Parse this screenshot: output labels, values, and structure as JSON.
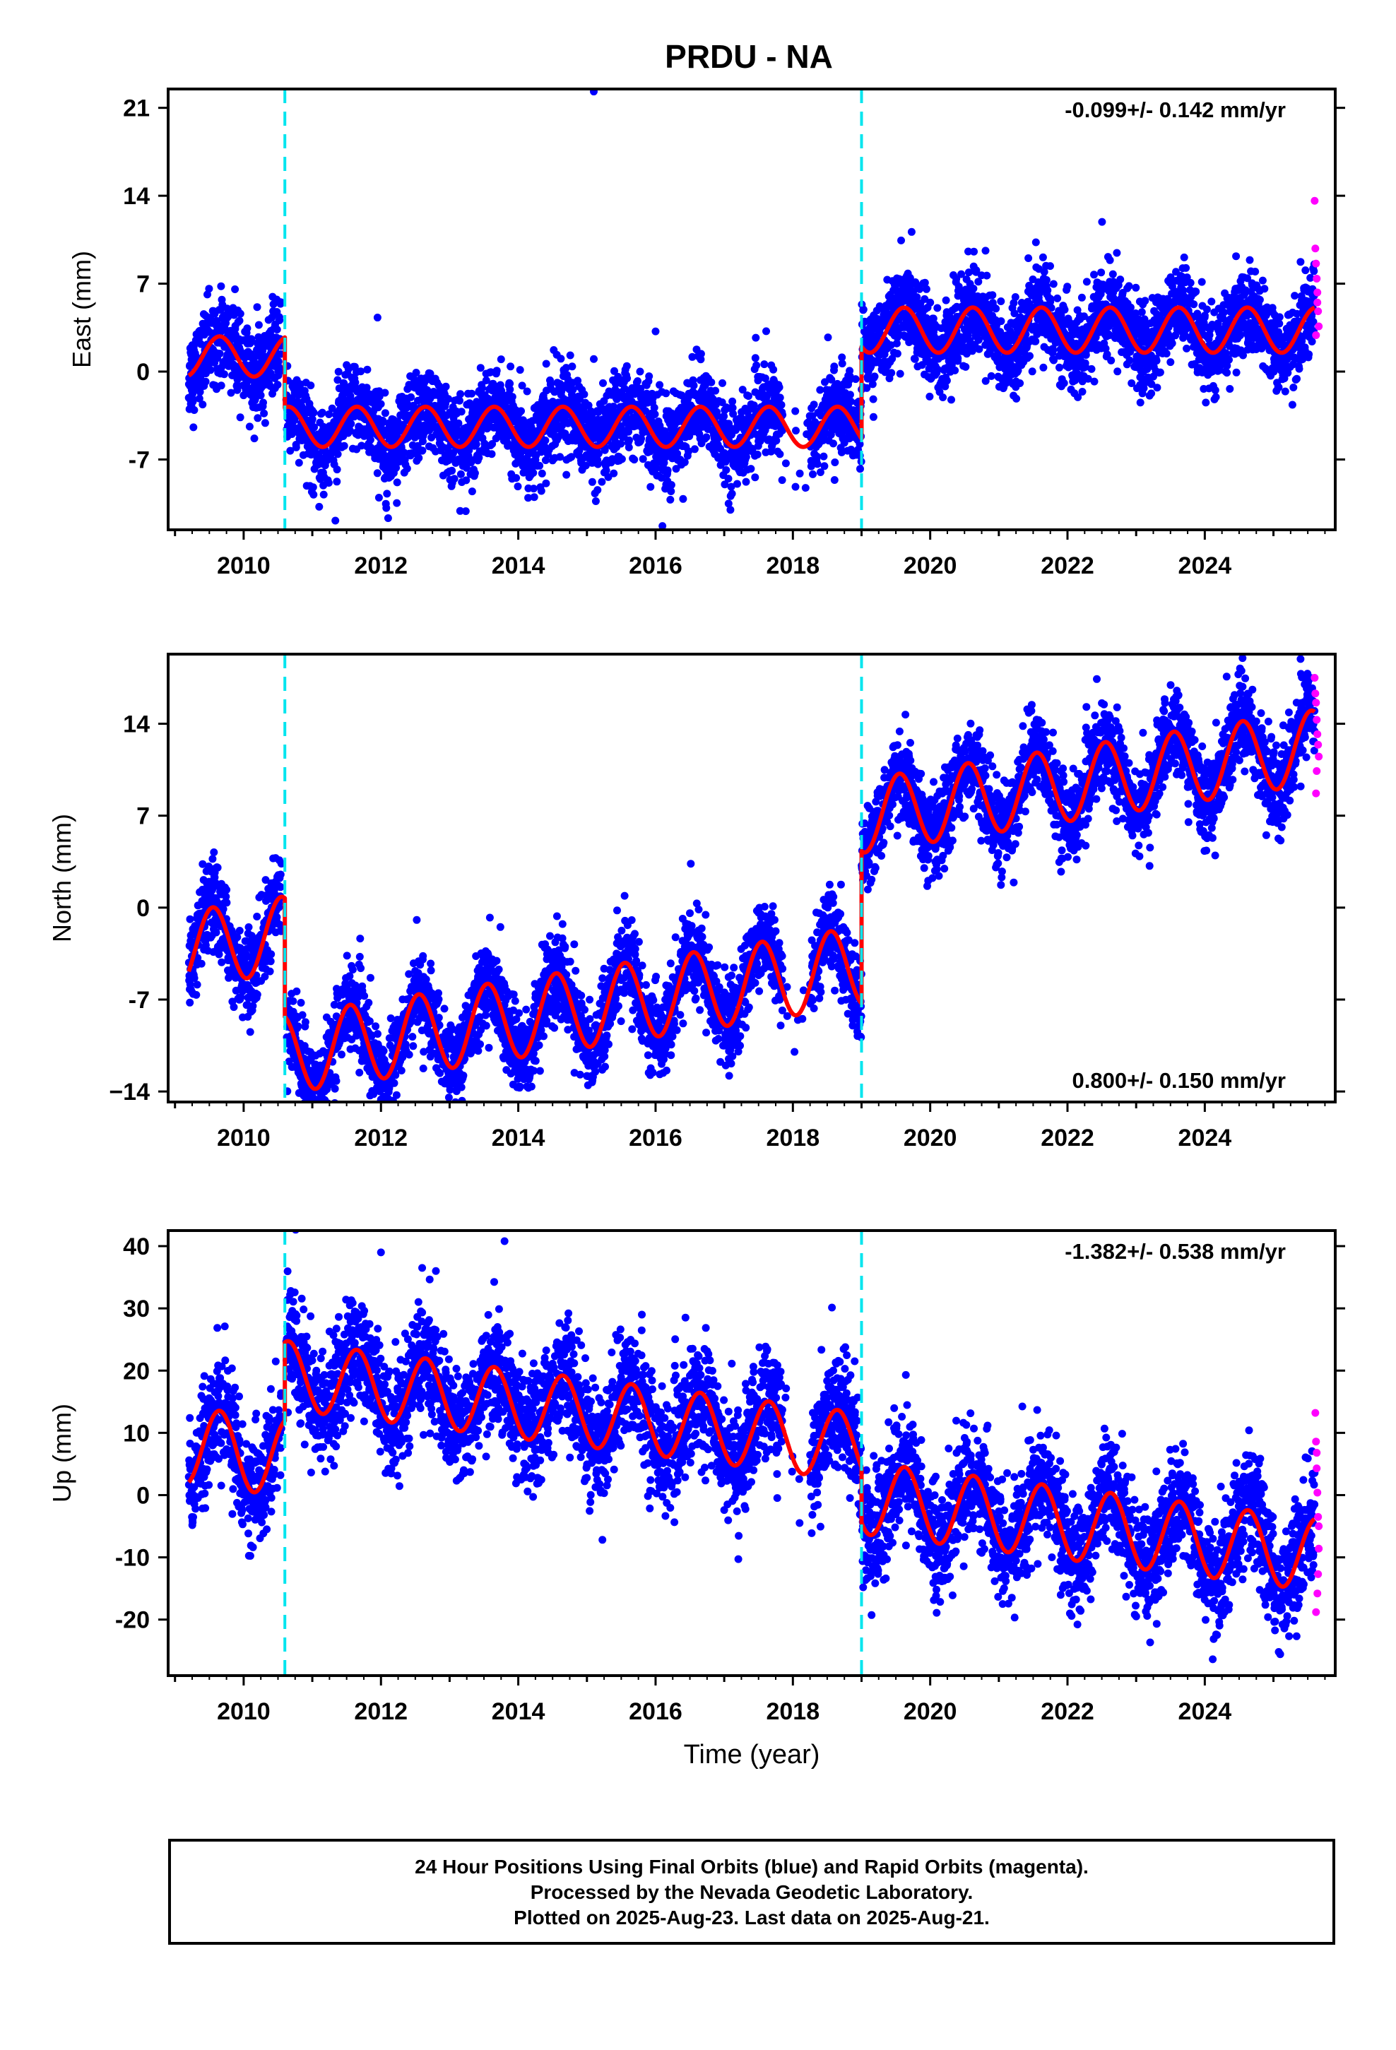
{
  "title": "PRDU - NA",
  "footer": {
    "line1": "24 Hour Positions Using Final Orbits (blue) and Rapid Orbits (magenta).",
    "line2": "Processed by the Nevada Geodetic Laboratory.",
    "line3": "Plotted on 2025-Aug-23. Last data on 2025-Aug-21."
  },
  "colors": {
    "final_orbits": "#0000ff",
    "rapid_orbits": "#ff00ff",
    "model_fit": "#ff0000",
    "offset_lines": "#00e5ee"
  },
  "chart_data": [
    {
      "type": "scatter",
      "panel": "east",
      "title": "PRDU - NA",
      "xlabel": "",
      "ylabel": "East (mm)",
      "xlim": [
        2008.9,
        2025.9
      ],
      "ylim": [
        -12.6,
        22.5
      ],
      "xticks": [
        "2010",
        "2012",
        "2014",
        "2016",
        "2018",
        "2020",
        "2022",
        "2024"
      ],
      "yticks": [
        "21",
        "14",
        "7",
        "0",
        "-7"
      ],
      "ytick_values": [
        21,
        14,
        7,
        0,
        -7
      ],
      "annotation": "-0.099+/- 0.142 mm/yr",
      "annotation_position": "top-right",
      "offset_epochs": [
        2010.6,
        2019.0
      ],
      "model": {
        "segments": [
          {
            "start": 2009.2,
            "end": 2010.6,
            "level": 1.2,
            "amp": 1.6,
            "annual_peak": 0.65
          },
          {
            "start": 2010.6,
            "end": 2019.0,
            "level": -4.4,
            "amp": 1.6,
            "annual_peak": 0.65
          },
          {
            "start": 2019.0,
            "end": 2025.6,
            "level": 3.3,
            "amp": 1.8,
            "annual_peak": 0.62
          }
        ]
      },
      "final_orbits_scatter_sd": 1.7,
      "outliers": [
        [
          2015.1,
          22.3
        ],
        [
          2011.95,
          4.3
        ],
        [
          2016.0,
          3.2
        ],
        [
          2015.1,
          1.0
        ],
        [
          2016.1,
          -12.3
        ]
      ],
      "rapid_orbits": [
        [
          2025.6,
          13.6
        ],
        [
          2025.61,
          9.8
        ],
        [
          2025.62,
          8.6
        ],
        [
          2025.63,
          7.4
        ],
        [
          2025.64,
          6.3
        ],
        [
          2025.64,
          5.5
        ],
        [
          2025.65,
          4.8
        ],
        [
          2025.66,
          3.6
        ],
        [
          2025.62,
          2.9
        ]
      ]
    },
    {
      "type": "scatter",
      "panel": "north",
      "xlabel": "",
      "ylabel": "North (mm)",
      "xlim": [
        2008.9,
        2025.9
      ],
      "ylim": [
        -14.8,
        19.3
      ],
      "xticks": [
        "2010",
        "2012",
        "2014",
        "2016",
        "2018",
        "2020",
        "2022",
        "2024"
      ],
      "yticks": [
        "14",
        "7",
        "0",
        "-7",
        "−14"
      ],
      "ytick_values": [
        14,
        7,
        0,
        -7,
        -14
      ],
      "annotation": "0.800+/- 0.150 mm/yr",
      "annotation_position": "bottom-right",
      "offset_epochs": [
        2010.6,
        2019.0
      ],
      "model": {
        "segments": [
          {
            "start": 2009.2,
            "end": 2010.6,
            "level": -2.6,
            "slope": 0.8,
            "amp": 2.9,
            "annual_peak": 0.55
          },
          {
            "start": 2010.6,
            "end": 2019.0,
            "level": -7.8,
            "slope": 0.8,
            "amp": 3.0,
            "annual_peak": 0.55
          },
          {
            "start": 2019.0,
            "end": 2025.6,
            "level": 9.6,
            "slope": 0.8,
            "amp": 2.8,
            "annual_peak": 0.55
          }
        ]
      },
      "final_orbits_scatter_sd": 1.6,
      "outliers": [
        [
          2024.55,
          19.0
        ],
        [
          2025.4,
          17.8
        ],
        [
          2010.9,
          -13.8
        ]
      ],
      "rapid_orbits": [
        [
          2025.6,
          17.5
        ],
        [
          2025.61,
          16.3
        ],
        [
          2025.62,
          15.6
        ],
        [
          2025.63,
          14.3
        ],
        [
          2025.64,
          13.2
        ],
        [
          2025.65,
          12.4
        ],
        [
          2025.66,
          11.5
        ],
        [
          2025.63,
          10.4
        ],
        [
          2025.62,
          8.7
        ]
      ]
    },
    {
      "type": "scatter",
      "panel": "up",
      "xlabel": "Time (year)",
      "ylabel": "Up (mm)",
      "xlim": [
        2008.9,
        2025.9
      ],
      "ylim": [
        -29,
        42.5
      ],
      "xticks": [
        "2010",
        "2012",
        "2014",
        "2016",
        "2018",
        "2020",
        "2022",
        "2024"
      ],
      "yticks": [
        "40",
        "30",
        "20",
        "10",
        "0",
        "-10",
        "-20"
      ],
      "ytick_values": [
        40,
        30,
        20,
        10,
        0,
        -10,
        -20
      ],
      "annotation": "-1.382+/- 0.538 mm/yr",
      "annotation_position": "top-right",
      "offset_epochs": [
        2010.6,
        2019.0
      ],
      "model": {
        "segments": [
          {
            "start": 2009.2,
            "end": 2010.6,
            "level": 7.0,
            "slope": -1.38,
            "amp": 6.2,
            "annual_peak": 0.65
          },
          {
            "start": 2010.6,
            "end": 2019.0,
            "level": 13.5,
            "slope": -1.38,
            "amp": 5.5,
            "annual_peak": 0.65
          },
          {
            "start": 2019.0,
            "end": 2025.6,
            "level": -5.0,
            "slope": -1.38,
            "amp": 5.8,
            "annual_peak": 0.63
          }
        ]
      },
      "final_orbits_scatter_sd": 4.5,
      "outliers": [
        [
          2013.8,
          40.8
        ],
        [
          2012.0,
          39.0
        ],
        [
          2012.6,
          36.5
        ],
        [
          2012.8,
          36.0
        ],
        [
          2015.8,
          29.0
        ],
        [
          2018.9,
          21.5
        ]
      ],
      "rapid_orbits": [
        [
          2025.61,
          13.2
        ],
        [
          2025.62,
          8.6
        ],
        [
          2025.63,
          6.8
        ],
        [
          2025.63,
          4.3
        ],
        [
          2025.64,
          0.4
        ],
        [
          2025.65,
          -3.5
        ],
        [
          2025.66,
          -5.0
        ],
        [
          2025.66,
          -8.6
        ],
        [
          2025.65,
          -12.7
        ],
        [
          2025.64,
          -15.8
        ],
        [
          2025.62,
          -18.8
        ]
      ]
    }
  ]
}
